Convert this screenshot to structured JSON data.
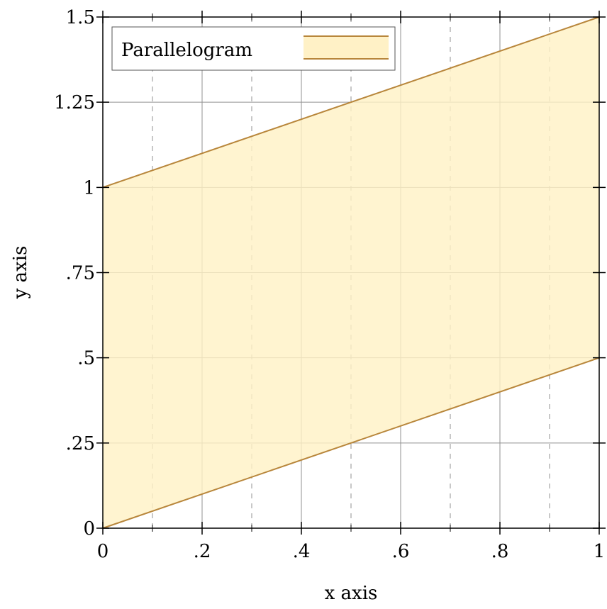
{
  "chart_data": {
    "type": "area",
    "title": "",
    "xlabel": "x axis",
    "ylabel": "y axis",
    "xlim": [
      0,
      1
    ],
    "ylim": [
      0,
      1.5
    ],
    "x_ticks": [
      {
        "value": 0,
        "label": "0"
      },
      {
        "value": 0.2,
        "label": ".2"
      },
      {
        "value": 0.4,
        "label": ".4"
      },
      {
        "value": 0.6,
        "label": ".6"
      },
      {
        "value": 0.8,
        "label": ".8"
      },
      {
        "value": 1,
        "label": "1"
      }
    ],
    "x_minor_ticks": [
      0.1,
      0.3,
      0.5,
      0.7,
      0.9
    ],
    "y_ticks": [
      {
        "value": 0,
        "label": "0"
      },
      {
        "value": 0.25,
        "label": ".25"
      },
      {
        "value": 0.5,
        "label": ".5"
      },
      {
        "value": 0.75,
        "label": ".75"
      },
      {
        "value": 1,
        "label": "1"
      },
      {
        "value": 1.25,
        "label": "1.25"
      },
      {
        "value": 1.5,
        "label": "1.5"
      }
    ],
    "grid": true,
    "legend_position": "top-left",
    "series": [
      {
        "name": "Parallelogram",
        "lower": [
          {
            "x": 0,
            "y": 0
          },
          {
            "x": 1,
            "y": 0.5
          }
        ],
        "upper": [
          {
            "x": 0,
            "y": 1
          },
          {
            "x": 1,
            "y": 1.5
          }
        ],
        "fill_color": "#fff1c6",
        "line_color": "#b8863b"
      }
    ]
  }
}
